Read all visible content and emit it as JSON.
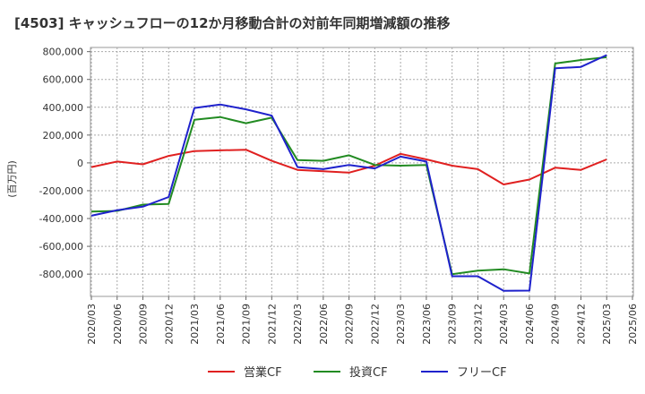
{
  "chart_data": {
    "type": "line",
    "title": "[4503]  キャッシュフローの12か月移動合計の対前年同期増減額の推移",
    "ylabel": "(百万円)",
    "xlabel": "",
    "ylim": [
      -960000,
      830000
    ],
    "yticks": [
      800000,
      600000,
      400000,
      200000,
      0,
      -200000,
      -400000,
      -600000,
      -800000
    ],
    "ytick_labels": [
      "800,000",
      "600,000",
      "400,000",
      "200,000",
      "0",
      "-200,000",
      "-400,000",
      "-600,000",
      "-800,000"
    ],
    "x": [
      "2020/03",
      "2020/06",
      "2020/09",
      "2020/12",
      "2021/03",
      "2021/06",
      "2021/09",
      "2021/12",
      "2022/03",
      "2022/06",
      "2022/09",
      "2022/12",
      "2023/03",
      "2023/06",
      "2023/09",
      "2023/12",
      "2024/03",
      "2024/06",
      "2024/09",
      "2024/12",
      "2025/03",
      "2025/06"
    ],
    "grid": true,
    "legend_position": "bottom",
    "series": [
      {
        "name": "営業CF",
        "color": "#e02020",
        "values": [
          -30000,
          10000,
          -10000,
          50000,
          85000,
          90000,
          95000,
          15000,
          -50000,
          -60000,
          -70000,
          -20000,
          65000,
          25000,
          -20000,
          -45000,
          -155000,
          -120000,
          -35000,
          -50000,
          25000,
          null
        ]
      },
      {
        "name": "投資CF",
        "color": "#228b22",
        "values": [
          -350000,
          -345000,
          -300000,
          -295000,
          310000,
          330000,
          285000,
          325000,
          20000,
          15000,
          55000,
          -15000,
          -20000,
          -15000,
          -800000,
          -775000,
          -765000,
          -795000,
          715000,
          740000,
          760000,
          null
        ]
      },
      {
        "name": "フリーCF",
        "color": "#1f22cc",
        "values": [
          -380000,
          -340000,
          -315000,
          -245000,
          395000,
          420000,
          385000,
          340000,
          -30000,
          -45000,
          -15000,
          -40000,
          45000,
          10000,
          -815000,
          -815000,
          -920000,
          -918000,
          680000,
          690000,
          775000,
          null
        ]
      }
    ]
  }
}
